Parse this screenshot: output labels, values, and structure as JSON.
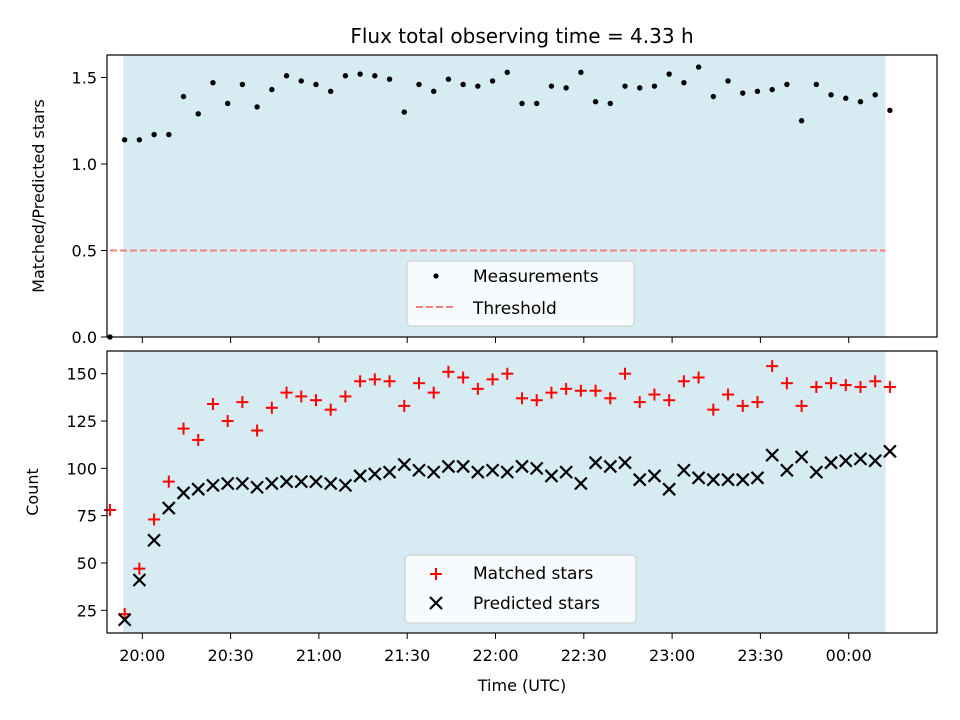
{
  "chart_data": [
    {
      "type": "scatter",
      "title": "Flux total observing time = 4.33 h",
      "xlabel": "",
      "ylabel": "Matched/Predicted stars",
      "ylim": [
        0,
        1.63
      ],
      "yticks": [
        "0.0",
        "0.5",
        "1.0",
        "1.5"
      ],
      "x_range_minutes": [
        -12,
        270
      ],
      "observing_window_minutes": [
        -6.5,
        252.5
      ],
      "window_color": "#add8e6",
      "grid": false,
      "legend_position": "lower center",
      "threshold": {
        "name": "Threshold",
        "value": 0.5,
        "x_range_minutes": [
          -11,
          252.5
        ],
        "color": "#f08080",
        "style": "dashed"
      },
      "series": [
        {
          "name": "Measurements",
          "color": "#000000",
          "marker": "dot",
          "x_minutes": [
            -11,
            -6,
            -1,
            4,
            9,
            14,
            19,
            24,
            29,
            34,
            39,
            44,
            49,
            54,
            59,
            64,
            69,
            74,
            79,
            84,
            89,
            94,
            99,
            104,
            109,
            114,
            119,
            124,
            129,
            134,
            139,
            144,
            149,
            154,
            159,
            164,
            169,
            174,
            179,
            184,
            189,
            194,
            199,
            204,
            209,
            214,
            219,
            224,
            229,
            234,
            239,
            244,
            249,
            254
          ],
          "y": [
            0.0,
            1.14,
            1.14,
            1.17,
            1.17,
            1.39,
            1.29,
            1.47,
            1.35,
            1.46,
            1.33,
            1.43,
            1.51,
            1.48,
            1.46,
            1.42,
            1.51,
            1.52,
            1.51,
            1.49,
            1.3,
            1.46,
            1.42,
            1.49,
            1.46,
            1.45,
            1.48,
            1.53,
            1.35,
            1.35,
            1.45,
            1.44,
            1.53,
            1.36,
            1.35,
            1.45,
            1.44,
            1.45,
            1.52,
            1.47,
            1.56,
            1.39,
            1.48,
            1.41,
            1.42,
            1.43,
            1.46,
            1.25,
            1.46,
            1.4,
            1.38,
            1.36,
            1.4,
            1.31
          ]
        }
      ]
    },
    {
      "type": "scatter",
      "title": "",
      "xlabel": "Time (UTC)",
      "ylabel": "Count",
      "ylim": [
        13,
        162
      ],
      "yticks": [
        "25",
        "50",
        "75",
        "100",
        "125",
        "150"
      ],
      "x_range_minutes": [
        -12,
        270
      ],
      "xtick_minutes": [
        0,
        30,
        60,
        90,
        120,
        150,
        180,
        210,
        240
      ],
      "xtick_labels": [
        "20:00",
        "20:30",
        "21:00",
        "21:30",
        "22:00",
        "22:30",
        "23:00",
        "23:30",
        "00:00"
      ],
      "observing_window_minutes": [
        -6.5,
        252.5
      ],
      "window_color": "#add8e6",
      "grid": false,
      "legend_position": "lower center",
      "series": [
        {
          "name": "Matched stars",
          "color": "#ff0000",
          "marker": "plus",
          "x_minutes": [
            -11,
            -6,
            -1,
            4,
            9,
            14,
            19,
            24,
            29,
            34,
            39,
            44,
            49,
            54,
            59,
            64,
            69,
            74,
            79,
            84,
            89,
            94,
            99,
            104,
            109,
            114,
            119,
            124,
            129,
            134,
            139,
            144,
            149,
            154,
            159,
            164,
            169,
            174,
            179,
            184,
            189,
            194,
            199,
            204,
            209,
            214,
            219,
            224,
            229,
            234,
            239,
            244,
            249,
            254
          ],
          "y": [
            78,
            23,
            47,
            73,
            93,
            121,
            115,
            134,
            125,
            135,
            120,
            132,
            140,
            138,
            136,
            131,
            138,
            146,
            147,
            146,
            133,
            145,
            140,
            151,
            148,
            142,
            147,
            150,
            137,
            136,
            140,
            142,
            141,
            141,
            137,
            150,
            135,
            139,
            136,
            146,
            148,
            131,
            139,
            133,
            135,
            154,
            145,
            133,
            143,
            145,
            144,
            143,
            146,
            143
          ]
        },
        {
          "name": "Predicted stars",
          "color": "#000000",
          "marker": "x",
          "x_minutes": [
            -6,
            -1,
            4,
            9,
            14,
            19,
            24,
            29,
            34,
            39,
            44,
            49,
            54,
            59,
            64,
            69,
            74,
            79,
            84,
            89,
            94,
            99,
            104,
            109,
            114,
            119,
            124,
            129,
            134,
            139,
            144,
            149,
            154,
            159,
            164,
            169,
            174,
            179,
            184,
            189,
            194,
            199,
            204,
            209,
            214,
            219,
            224,
            229,
            234,
            239,
            244,
            249,
            254
          ],
          "y": [
            20,
            41,
            62,
            79,
            87,
            89,
            91,
            92,
            92,
            90,
            92,
            93,
            93,
            93,
            92,
            91,
            96,
            97,
            98,
            102,
            99,
            98,
            101,
            101,
            98,
            99,
            98,
            101,
            100,
            96,
            98,
            92,
            103,
            101,
            103,
            94,
            96,
            89,
            99,
            95,
            94,
            94,
            94,
            95,
            107,
            99,
            106,
            98,
            103,
            104,
            105,
            104,
            109
          ]
        }
      ]
    }
  ]
}
